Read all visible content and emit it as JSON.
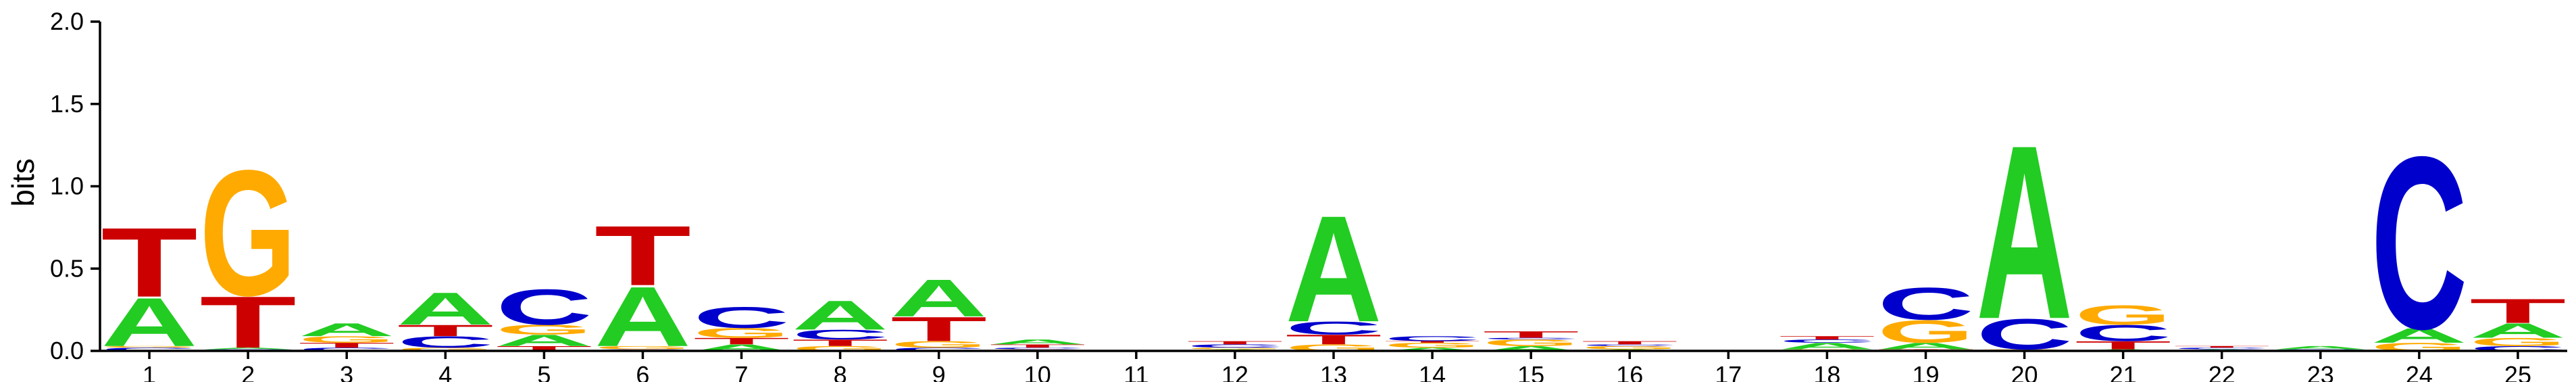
{
  "chart_data": {
    "type": "sequence_logo",
    "ylabel": "bits",
    "ylim": [
      0,
      2
    ],
    "yticks": [
      "0.0",
      "0.5",
      "1.0",
      "1.5",
      "2.0"
    ],
    "colors": {
      "A": "#22cc22",
      "C": "#0000cc",
      "G": "#ffaa00",
      "T": "#cc0000"
    },
    "positions": [
      {
        "pos": "1",
        "stack": [
          [
            "C",
            0.02
          ],
          [
            "G",
            0.01
          ],
          [
            "A",
            0.3
          ],
          [
            "T",
            0.43
          ]
        ]
      },
      {
        "pos": "2",
        "stack": [
          [
            "C",
            0.01
          ],
          [
            "A",
            0.01
          ],
          [
            "T",
            0.32
          ],
          [
            "G",
            0.78
          ]
        ]
      },
      {
        "pos": "3",
        "stack": [
          [
            "C",
            0.02
          ],
          [
            "T",
            0.03
          ],
          [
            "G",
            0.04
          ],
          [
            "A",
            0.08
          ]
        ]
      },
      {
        "pos": "4",
        "stack": [
          [
            "G",
            0.02
          ],
          [
            "C",
            0.07
          ],
          [
            "T",
            0.07
          ],
          [
            "A",
            0.2
          ]
        ]
      },
      {
        "pos": "5",
        "stack": [
          [
            "T",
            0.03
          ],
          [
            "A",
            0.07
          ],
          [
            "G",
            0.06
          ],
          [
            "C",
            0.22
          ]
        ]
      },
      {
        "pos": "6",
        "stack": [
          [
            "C",
            0.01
          ],
          [
            "G",
            0.02
          ],
          [
            "A",
            0.37
          ],
          [
            "T",
            0.37
          ]
        ]
      },
      {
        "pos": "7",
        "stack": [
          [
            "A",
            0.04
          ],
          [
            "T",
            0.04
          ],
          [
            "G",
            0.06
          ],
          [
            "C",
            0.13
          ]
        ]
      },
      {
        "pos": "8",
        "stack": [
          [
            "G",
            0.03
          ],
          [
            "T",
            0.04
          ],
          [
            "C",
            0.06
          ],
          [
            "A",
            0.18
          ]
        ]
      },
      {
        "pos": "9",
        "stack": [
          [
            "C",
            0.02
          ],
          [
            "G",
            0.04
          ],
          [
            "T",
            0.15
          ],
          [
            "A",
            0.23
          ]
        ]
      },
      {
        "pos": "10",
        "stack": [
          [
            "G",
            0.01
          ],
          [
            "C",
            0.01
          ],
          [
            "T",
            0.02
          ],
          [
            "A",
            0.03
          ]
        ]
      },
      {
        "pos": "11",
        "stack": []
      },
      {
        "pos": "12",
        "stack": [
          [
            "A",
            0.01
          ],
          [
            "G",
            0.01
          ],
          [
            "C",
            0.02
          ],
          [
            "T",
            0.02
          ]
        ]
      },
      {
        "pos": "13",
        "stack": [
          [
            "G",
            0.04
          ],
          [
            "T",
            0.06
          ],
          [
            "C",
            0.08
          ],
          [
            "A",
            0.66
          ]
        ]
      },
      {
        "pos": "14",
        "stack": [
          [
            "A",
            0.02
          ],
          [
            "G",
            0.03
          ],
          [
            "T",
            0.01
          ],
          [
            "C",
            0.03
          ]
        ]
      },
      {
        "pos": "15",
        "stack": [
          [
            "A",
            0.03
          ],
          [
            "G",
            0.04
          ],
          [
            "C",
            0.01
          ],
          [
            "T",
            0.04
          ]
        ]
      },
      {
        "pos": "16",
        "stack": [
          [
            "A",
            0.01
          ],
          [
            "G",
            0.02
          ],
          [
            "C",
            0.01
          ],
          [
            "T",
            0.02
          ]
        ]
      },
      {
        "pos": "17",
        "stack": []
      },
      {
        "pos": "18",
        "stack": [
          [
            "G",
            0.01
          ],
          [
            "A",
            0.04
          ],
          [
            "C",
            0.02
          ],
          [
            "T",
            0.02
          ]
        ]
      },
      {
        "pos": "19",
        "stack": [
          [
            "T",
            0.01
          ],
          [
            "A",
            0.04
          ],
          [
            "G",
            0.14
          ],
          [
            "C",
            0.2
          ]
        ]
      },
      {
        "pos": "20",
        "stack": [
          [
            "G",
            0.01
          ],
          [
            "C",
            0.19
          ],
          [
            "A",
            1.08
          ]
        ]
      },
      {
        "pos": "21",
        "stack": [
          [
            "A",
            0.01
          ],
          [
            "T",
            0.05
          ],
          [
            "C",
            0.1
          ],
          [
            "G",
            0.12
          ]
        ]
      },
      {
        "pos": "22",
        "stack": [
          [
            "A",
            0.01
          ],
          [
            "C",
            0.01
          ],
          [
            "T",
            0.01
          ]
        ]
      },
      {
        "pos": "23",
        "stack": [
          [
            "C",
            0.01
          ],
          [
            "A",
            0.02
          ]
        ]
      },
      {
        "pos": "24",
        "stack": [
          [
            "G",
            0.05
          ],
          [
            "A",
            0.09
          ],
          [
            "C",
            1.07
          ]
        ]
      },
      {
        "pos": "25",
        "stack": [
          [
            "C",
            0.03
          ],
          [
            "G",
            0.05
          ],
          [
            "A",
            0.09
          ],
          [
            "T",
            0.15
          ]
        ]
      }
    ]
  }
}
